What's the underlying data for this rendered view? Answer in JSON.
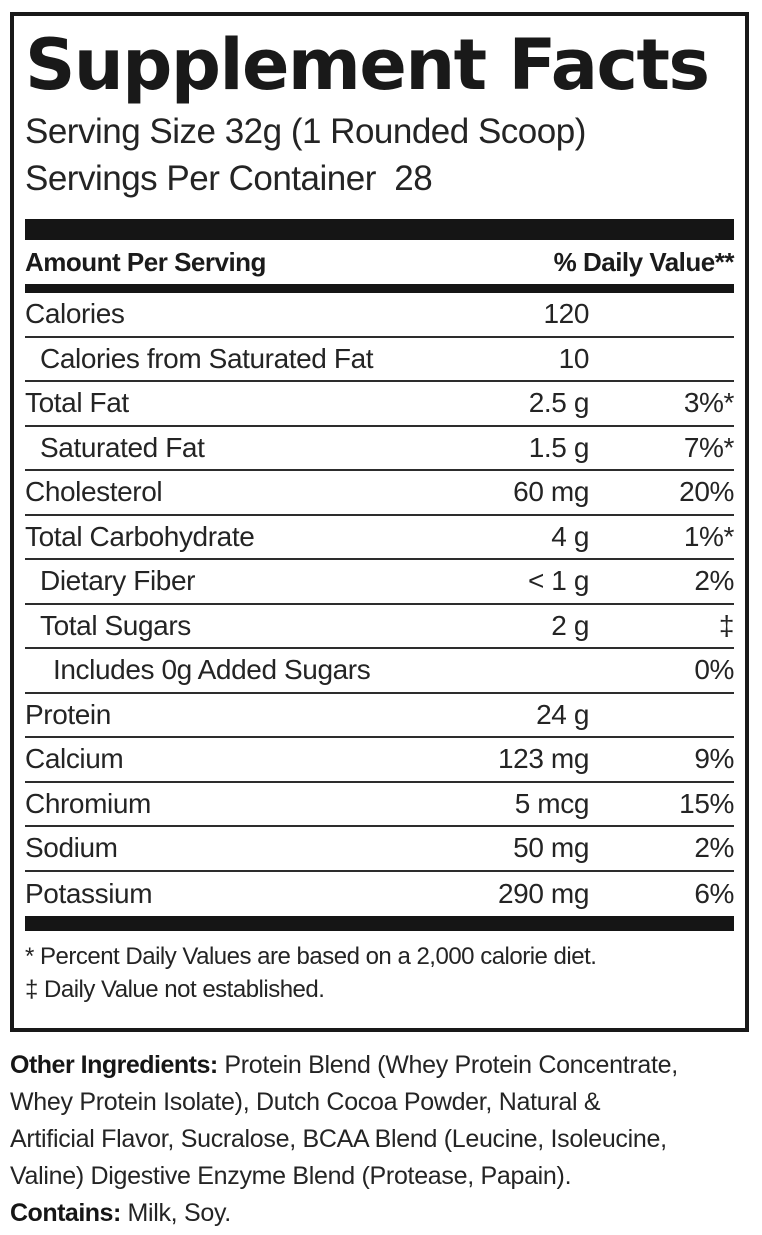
{
  "label": {
    "title": "Supplement Facts",
    "serving_size": "Serving Size 32g (1 Rounded Scoop)",
    "servings_per_container": "Servings Per Container  28",
    "column_headers": {
      "left": "Amount Per Serving",
      "right": "% Daily Value**"
    },
    "rows": [
      {
        "name": "Calories",
        "amount": "120",
        "dv": "",
        "indent": 0
      },
      {
        "name": "Calories from Saturated Fat",
        "amount": "10",
        "dv": "",
        "indent": 1
      },
      {
        "name": "Total Fat",
        "amount": "2.5 g",
        "dv": "3%*",
        "indent": 0
      },
      {
        "name": "Saturated Fat",
        "amount": "1.5 g",
        "dv": "7%*",
        "indent": 1
      },
      {
        "name": "Cholesterol",
        "amount": "60 mg",
        "dv": "20%",
        "indent": 0
      },
      {
        "name": "Total Carbohydrate",
        "amount": "4 g",
        "dv": "1%*",
        "indent": 0
      },
      {
        "name": "Dietary Fiber",
        "amount": "< 1 g",
        "dv": "2%",
        "indent": 1
      },
      {
        "name": "Total Sugars",
        "amount": "2 g",
        "dv": "‡",
        "indent": 1
      },
      {
        "name": "Includes 0g Added Sugars",
        "amount": "",
        "dv": "0%",
        "indent": 2
      },
      {
        "name": "Protein",
        "amount": "24 g",
        "dv": "",
        "indent": 0
      },
      {
        "name": "Calcium",
        "amount": "123 mg",
        "dv": "9%",
        "indent": 0
      },
      {
        "name": "Chromium",
        "amount": "5 mcg",
        "dv": "15%",
        "indent": 0
      },
      {
        "name": "Sodium",
        "amount": "50 mg",
        "dv": "2%",
        "indent": 0
      },
      {
        "name": "Potassium",
        "amount": "290 mg",
        "dv": "6%",
        "indent": 0
      }
    ],
    "footnotes": {
      "percent_dv": "* Percent Daily Values are based on a 2,000 calorie diet.",
      "not_established": "‡ Daily Value not established."
    }
  },
  "footer": {
    "other_ingredients_label": "Other Ingredients:",
    "other_ingredients_line1": "Protein Blend (Whey Protein Concentrate,",
    "other_ingredients_line2": "Whey Protein Isolate), Dutch Cocoa Powder, Natural &",
    "other_ingredients_line3": "Artificial Flavor, Sucralose, BCAA Blend (Leucine, Isoleucine,",
    "other_ingredients_line4": "Valine) Digestive Enzyme Blend (Protease, Papain).",
    "contains_label": "Contains:",
    "contains_text": "Milk, Soy."
  }
}
